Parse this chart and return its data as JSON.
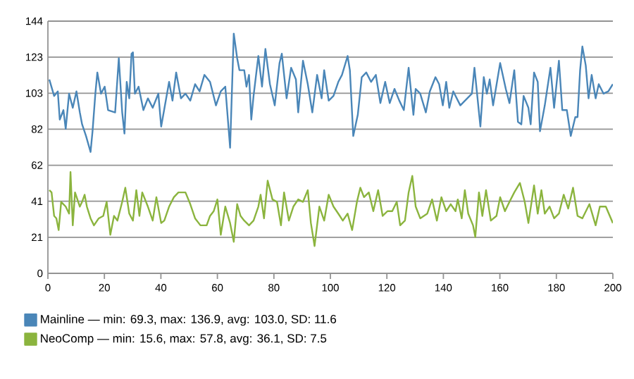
{
  "chart_data": {
    "type": "line",
    "xlim": [
      0,
      200
    ],
    "xticks": [
      0,
      20,
      40,
      60,
      80,
      100,
      120,
      140,
      160,
      180,
      200
    ],
    "ylim": [
      0,
      144
    ],
    "yticks": [
      0,
      {
        "value": 20.571,
        "label": "21"
      },
      {
        "value": 41.143,
        "label": "41"
      },
      {
        "value": 61.714,
        "label": "62"
      },
      {
        "value": 82.286,
        "label": "82"
      },
      {
        "value": 102.857,
        "label": "103"
      },
      {
        "value": 123.429,
        "label": "123"
      },
      144
    ],
    "grid": "y",
    "legend": "bottom",
    "marker": "none",
    "line_style": "solid",
    "series": [
      {
        "name": "Mainline — min: 69.3, max: 136.9, avg: 103.0, SD: 11.6",
        "color": "#4a86b8",
        "x": [
          0.5,
          2.2,
          3.5,
          4.2,
          5.5,
          6.3,
          7.5,
          8.8,
          10.1,
          11.3,
          12.1,
          13.5,
          15.1,
          15.8,
          16.8,
          17.5,
          18.8,
          20.1,
          21.3,
          23.8,
          25.1,
          26.3,
          27.1,
          27.9,
          28.8,
          29.6,
          30.1,
          30.8,
          32.1,
          33.8,
          35.4,
          37.1,
          39.1,
          40.1,
          42.9,
          44.1,
          45.4,
          47.1,
          48.7,
          50.4,
          52.1,
          53.7,
          55.4,
          57.4,
          59.5,
          61.2,
          62.8,
          64.5,
          65.8,
          67.0,
          67.8,
          69.5,
          70.3,
          71.2,
          72.0,
          72.8,
          74.5,
          75.8,
          77.0,
          78.6,
          80.3,
          82.0,
          82.8,
          84.5,
          86.1,
          87.8,
          88.6,
          90.3,
          92.0,
          93.6,
          95.3,
          96.9,
          97.8,
          99.4,
          101.1,
          102.8,
          104.1,
          106.1,
          106.9,
          108.1,
          109.7,
          111.1,
          112.7,
          114.4,
          116.1,
          117.7,
          119.4,
          121.0,
          122.7,
          124.4,
          126.0,
          127.7,
          129.4,
          130.2,
          131.8,
          133.8,
          135.2,
          137.2,
          138.5,
          139.8,
          141.0,
          142.1,
          143.5,
          146.0,
          150.1,
          151.0,
          153.1,
          154.3,
          155.4,
          156.4,
          157.6,
          160.1,
          162.1,
          163.4,
          165.1,
          166.4,
          167.6,
          168.4,
          170.1,
          170.9,
          172.1,
          173.4,
          174.2,
          175.9,
          177.9,
          179.2,
          180.9,
          182.1,
          183.7,
          185.1,
          186.7,
          187.5,
          188.4,
          189.2,
          190.4,
          191.4,
          192.5,
          193.9,
          195.0,
          196.7,
          198.4,
          200.0
        ],
        "values": [
          110.7,
          101.3,
          103.9,
          87.8,
          93.2,
          82.5,
          102.6,
          94.5,
          103.9,
          91.9,
          85.1,
          78.4,
          69.3,
          81.1,
          102.6,
          114.7,
          102.6,
          106.6,
          93.2,
          91.9,
          122.8,
          91.9,
          79.8,
          109.3,
          99.9,
          125.4,
          126.2,
          102.6,
          106.6,
          93.2,
          99.9,
          94.5,
          102.6,
          83.8,
          109.3,
          98.6,
          114.7,
          99.9,
          102.6,
          98.6,
          108.0,
          103.9,
          113.3,
          109.3,
          95.9,
          103.9,
          106.6,
          71.7,
          136.9,
          122.8,
          116.0,
          116.0,
          106.6,
          113.3,
          87.8,
          101.3,
          124.1,
          106.6,
          128.1,
          108.0,
          95.9,
          120.1,
          125.4,
          99.9,
          117.4,
          110.7,
          91.9,
          121.4,
          108.0,
          91.9,
          113.3,
          99.9,
          116.0,
          98.6,
          101.3,
          109.3,
          113.3,
          124.1,
          116.0,
          78.4,
          90.5,
          112.0,
          114.7,
          109.3,
          113.3,
          97.2,
          109.3,
          97.2,
          105.3,
          98.6,
          93.2,
          117.4,
          90.5,
          105.3,
          102.6,
          91.9,
          103.9,
          112.0,
          108.0,
          95.9,
          109.3,
          94.5,
          103.9,
          95.9,
          102.6,
          117.4,
          83.8,
          112.0,
          102.6,
          110.7,
          95.9,
          120.1,
          105.3,
          97.2,
          116.0,
          86.5,
          85.1,
          101.3,
          94.5,
          85.1,
          114.7,
          109.3,
          81.1,
          95.9,
          117.4,
          94.5,
          121.4,
          93.2,
          93.2,
          78.4,
          89.2,
          89.2,
          116.0,
          129.5,
          118.7,
          99.9,
          113.3,
          99.9,
          108.0,
          102.6,
          103.9,
          108.0
        ]
      },
      {
        "name": "NeoComp — min: 15.6, max: 57.8, avg: 36.1, SD: 7.5",
        "color": "#8bb43e",
        "x": [
          0.5,
          1.3,
          2.2,
          3.0,
          3.8,
          4.7,
          6.3,
          7.5,
          8.0,
          8.8,
          9.6,
          11.3,
          12.1,
          13.0,
          13.8,
          15.1,
          16.3,
          18.0,
          19.6,
          20.8,
          22.1,
          23.4,
          24.6,
          26.3,
          27.4,
          28.8,
          30.1,
          31.3,
          32.4,
          33.4,
          35.4,
          37.1,
          38.4,
          40.1,
          41.2,
          42.9,
          44.6,
          46.2,
          48.7,
          50.4,
          52.1,
          54.0,
          56.2,
          57.4,
          58.7,
          60.0,
          61.2,
          62.8,
          64.5,
          65.8,
          67.0,
          68.2,
          69.5,
          71.2,
          72.8,
          74.5,
          75.3,
          76.5,
          77.8,
          79.5,
          81.1,
          82.5,
          83.6,
          85.3,
          86.9,
          88.6,
          90.3,
          92.0,
          93.1,
          94.4,
          96.1,
          97.8,
          99.4,
          101.1,
          102.8,
          104.4,
          106.1,
          107.7,
          109.4,
          110.6,
          111.9,
          113.6,
          115.2,
          116.9,
          118.5,
          120.2,
          121.9,
          123.5,
          124.7,
          126.4,
          127.7,
          129.0,
          130.2,
          131.8,
          134.3,
          136.0,
          137.7,
          139.3,
          141.0,
          142.6,
          144.3,
          145.1,
          146.5,
          147.6,
          148.8,
          150.5,
          151.3,
          152.6,
          153.8,
          155.1,
          156.8,
          158.8,
          160.1,
          161.8,
          163.4,
          165.1,
          167.1,
          168.8,
          170.1,
          172.1,
          173.4,
          174.7,
          175.9,
          177.6,
          179.2,
          180.9,
          182.6,
          184.2,
          185.9,
          187.5,
          189.2,
          191.7,
          193.9,
          195.4,
          197.5,
          200.0
        ],
        "values": [
          47.5,
          46.2,
          32.8,
          31.4,
          24.7,
          40.8,
          38.1,
          34.1,
          57.8,
          27.4,
          46.2,
          38.1,
          40.8,
          44.9,
          38.1,
          31.4,
          27.4,
          31.4,
          32.8,
          40.8,
          22.0,
          32.8,
          30.1,
          40.8,
          48.9,
          34.1,
          30.1,
          47.5,
          32.8,
          46.2,
          38.1,
          30.1,
          43.5,
          28.7,
          30.1,
          38.1,
          43.5,
          46.2,
          46.2,
          39.5,
          31.4,
          27.4,
          27.4,
          32.8,
          35.5,
          42.2,
          22.0,
          38.1,
          28.7,
          18.0,
          39.5,
          32.8,
          30.1,
          27.4,
          30.1,
          38.1,
          44.9,
          31.4,
          52.9,
          42.2,
          40.8,
          27.4,
          46.2,
          30.1,
          38.1,
          42.2,
          40.8,
          47.5,
          28.7,
          15.6,
          38.1,
          30.1,
          44.9,
          38.1,
          34.1,
          30.1,
          34.1,
          24.7,
          40.8,
          48.9,
          43.5,
          46.2,
          35.5,
          47.5,
          32.8,
          35.5,
          35.5,
          40.8,
          27.4,
          30.1,
          46.2,
          55.6,
          38.1,
          31.4,
          34.1,
          42.2,
          30.1,
          43.5,
          35.5,
          39.5,
          35.5,
          42.2,
          31.4,
          47.5,
          34.1,
          27.4,
          20.7,
          46.2,
          32.8,
          47.5,
          30.1,
          32.8,
          43.5,
          35.5,
          40.8,
          46.2,
          51.6,
          40.8,
          28.7,
          50.2,
          34.1,
          47.5,
          34.1,
          38.1,
          31.4,
          34.1,
          44.9,
          37.0,
          48.9,
          32.8,
          31.4,
          39.5,
          27.4,
          38.1,
          38.1,
          28.7
        ]
      }
    ]
  }
}
